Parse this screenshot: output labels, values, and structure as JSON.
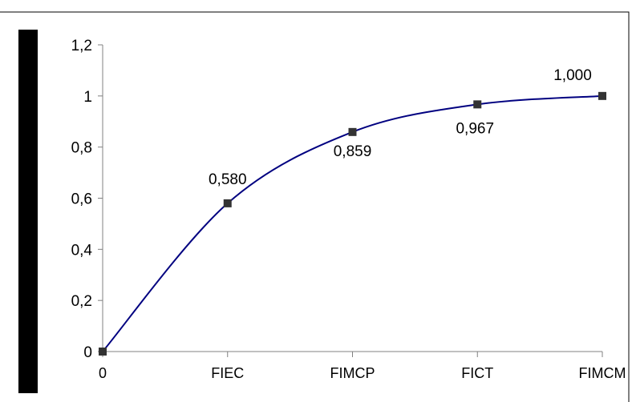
{
  "chart_data": {
    "type": "line",
    "title": "",
    "xlabel": "",
    "ylabel": "",
    "categories": [
      "0",
      "FIEC",
      "FIMCP",
      "FICT",
      "FIMCM"
    ],
    "series": [
      {
        "values": [
          0,
          0.58,
          0.859,
          0.967,
          1.0
        ]
      }
    ],
    "data_labels": [
      "",
      "0,580",
      "0,859",
      "0,967",
      "1,000"
    ],
    "y_ticks": [
      "0",
      "0,2",
      "0,4",
      "0,6",
      "0,8",
      "1",
      "1,2"
    ],
    "ylim": [
      0,
      1.2
    ],
    "grid": false,
    "legend": "none",
    "smoothed": true,
    "colors": {
      "line": "#000080",
      "marker": "#333333",
      "left_bar": "#000000",
      "border": "#000000"
    }
  }
}
